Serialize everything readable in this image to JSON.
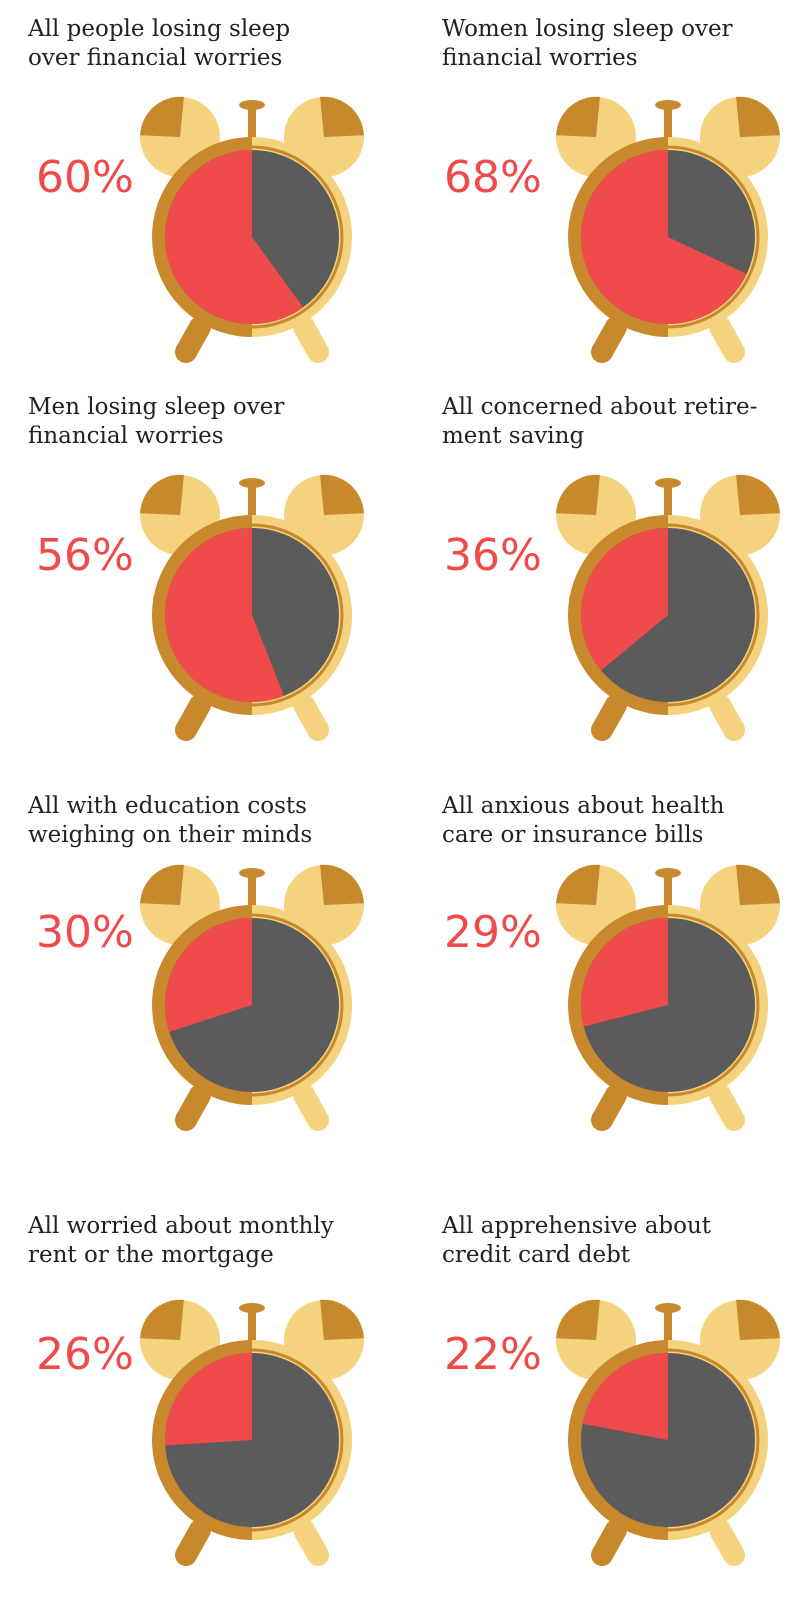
{
  "chart_data": [
    {
      "type": "pie",
      "title": "All people losing sleep\nover financial worries",
      "values": [
        60
      ],
      "value_labels": [
        "60%"
      ],
      "color": "#ef4b4b"
    },
    {
      "type": "pie",
      "title": "Women losing sleep over\nfinancial worries",
      "values": [
        68
      ],
      "value_labels": [
        "68%"
      ],
      "color": "#ef4b4b"
    },
    {
      "type": "pie",
      "title": "Men losing sleep over\nfinancial worries",
      "values": [
        56
      ],
      "value_labels": [
        "56%"
      ],
      "color": "#ef4b4b"
    },
    {
      "type": "pie",
      "title": "All concerned about retire-\nment saving",
      "values": [
        36
      ],
      "value_labels": [
        "36%"
      ],
      "color": "#ef4b4b"
    },
    {
      "type": "pie",
      "title": "All with education costs\nweighing on their minds",
      "values": [
        30
      ],
      "value_labels": [
        "30%"
      ],
      "color": "#ef4b4b"
    },
    {
      "type": "pie",
      "title": "All anxious about health\ncare or insurance bills",
      "values": [
        29
      ],
      "value_labels": [
        "29%"
      ],
      "color": "#ef4b4b"
    },
    {
      "type": "pie",
      "title": "All worried about monthly\nrent or the mortgage",
      "values": [
        26
      ],
      "value_labels": [
        "26%"
      ],
      "color": "#ef4b4b"
    },
    {
      "type": "pie",
      "title": "All apprehensive about\ncredit card debt",
      "values": [
        22
      ],
      "value_labels": [
        "22%"
      ],
      "color": "#ef4b4b"
    }
  ]
}
